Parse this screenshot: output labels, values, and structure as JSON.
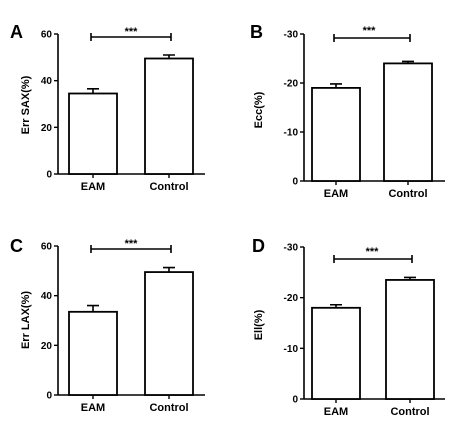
{
  "chart_data": [
    {
      "panel": "A",
      "type": "bar",
      "categories": [
        "EAM",
        "Control"
      ],
      "values": [
        34.5,
        49.5
      ],
      "errors": [
        2.0,
        1.5
      ],
      "ylabel": "Err SAX(%)",
      "ylim": [
        0,
        60
      ],
      "yticks": [
        "0",
        "20",
        "40",
        "60"
      ],
      "significance": "***"
    },
    {
      "panel": "B",
      "type": "bar",
      "categories": [
        "EAM",
        "Control"
      ],
      "values": [
        -19,
        -24
      ],
      "errors": [
        0.8,
        0.4
      ],
      "ylabel": "Ecc(%)",
      "ylim": [
        0,
        -30
      ],
      "yticks": [
        "0",
        "-10",
        "-20",
        "-30"
      ],
      "significance": "***"
    },
    {
      "panel": "C",
      "type": "bar",
      "categories": [
        "EAM",
        "Control"
      ],
      "values": [
        33.5,
        49.5
      ],
      "errors": [
        2.5,
        1.8
      ],
      "ylabel": "Err LAX(%)",
      "ylim": [
        0,
        60
      ],
      "yticks": [
        "0",
        "20",
        "40",
        "60"
      ],
      "significance": "***"
    },
    {
      "panel": "D",
      "type": "bar",
      "categories": [
        "EAM",
        "Control"
      ],
      "values": [
        -18,
        -23.5
      ],
      "errors": [
        0.6,
        0.5
      ],
      "ylabel": "Ell(%)",
      "ylim": [
        0,
        -30
      ],
      "yticks": [
        "0",
        "-10",
        "-20",
        "-30"
      ],
      "significance": "***"
    }
  ]
}
